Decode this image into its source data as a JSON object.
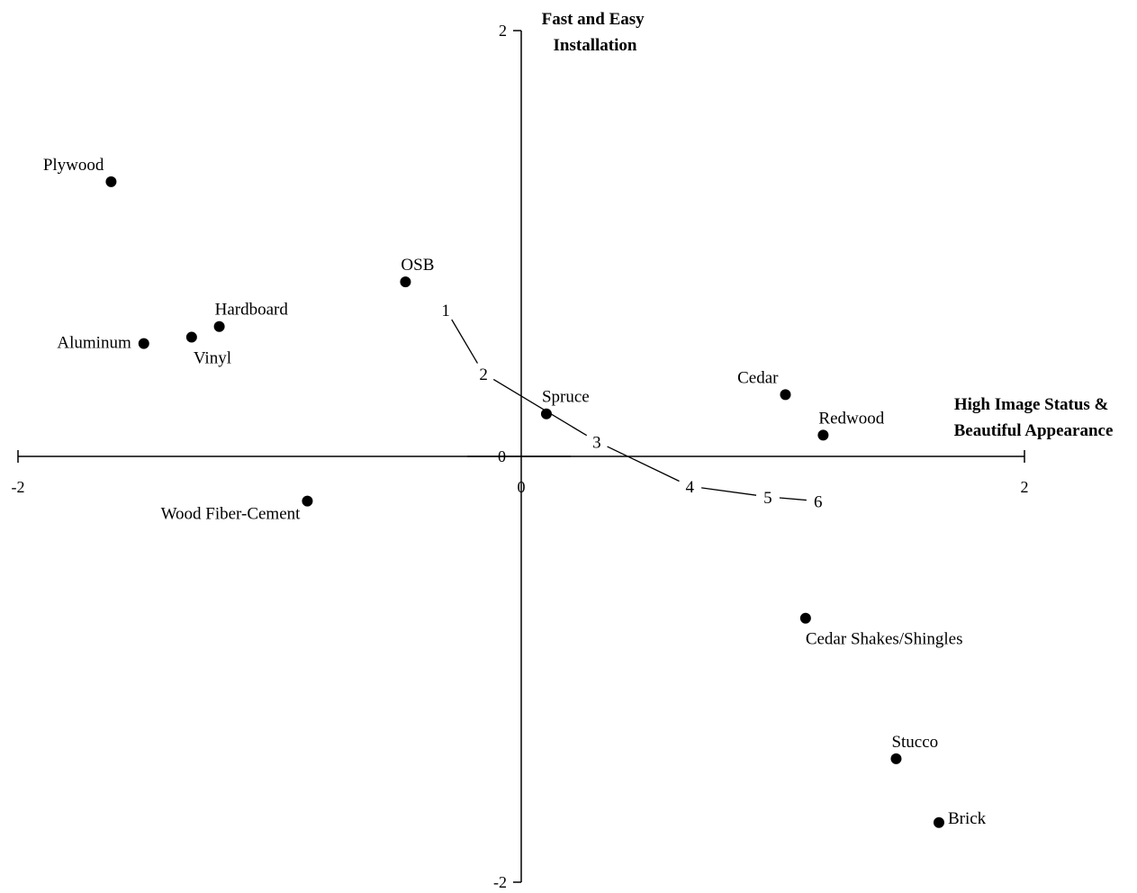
{
  "chart_data": {
    "type": "scatter",
    "x_axis_title": [
      "High Image Status &",
      "Beautiful Appearance"
    ],
    "y_axis_title": [
      "Fast and Easy",
      "Installation"
    ],
    "xlim": [
      -2,
      2
    ],
    "ylim": [
      -2,
      2
    ],
    "x_ticks": [
      {
        "value": -2,
        "label": "-2"
      },
      {
        "value": 0,
        "label": "0"
      },
      {
        "value": 2,
        "label": "2"
      }
    ],
    "y_ticks": [
      {
        "value": 2,
        "label": "2"
      },
      {
        "value": 0,
        "label": "0"
      },
      {
        "value": -2,
        "label": "-2"
      }
    ],
    "points": [
      {
        "label": "Plywood",
        "x": -1.63,
        "y": 1.29,
        "label_pos": "above-left"
      },
      {
        "label": "OSB",
        "x": -0.46,
        "y": 0.82,
        "label_pos": "above-right"
      },
      {
        "label": "Hardboard",
        "x": -1.2,
        "y": 0.61,
        "label_pos": "above-right"
      },
      {
        "label": "Aluminum",
        "x": -1.5,
        "y": 0.53,
        "label_pos": "left"
      },
      {
        "label": "Vinyl",
        "x": -1.31,
        "y": 0.56,
        "label_pos": "below-right"
      },
      {
        "label": "Spruce",
        "x": 0.1,
        "y": 0.2,
        "label_pos": "above-right"
      },
      {
        "label": "Cedar",
        "x": 1.05,
        "y": 0.29,
        "label_pos": "above-left"
      },
      {
        "label": "Redwood",
        "x": 1.2,
        "y": 0.1,
        "label_pos": "above-right"
      },
      {
        "label": "Wood Fiber-Cement",
        "x": -0.85,
        "y": -0.21,
        "label_pos": "below-left"
      },
      {
        "label": "Cedar Shakes/Shingles",
        "x": 1.13,
        "y": -0.76,
        "label_pos": "below"
      },
      {
        "label": "Stucco",
        "x": 1.49,
        "y": -1.42,
        "label_pos": "above-right"
      },
      {
        "label": "Brick",
        "x": 1.66,
        "y": -1.72,
        "label_pos": "right"
      }
    ],
    "trajectory": [
      {
        "label": "1",
        "x": -0.3,
        "y": 0.69
      },
      {
        "label": "2",
        "x": -0.15,
        "y": 0.39
      },
      {
        "label": "3",
        "x": 0.3,
        "y": 0.07
      },
      {
        "label": "4",
        "x": 0.67,
        "y": -0.14
      },
      {
        "label": "5",
        "x": 0.98,
        "y": -0.19
      },
      {
        "label": "6",
        "x": 1.18,
        "y": -0.21
      }
    ]
  }
}
